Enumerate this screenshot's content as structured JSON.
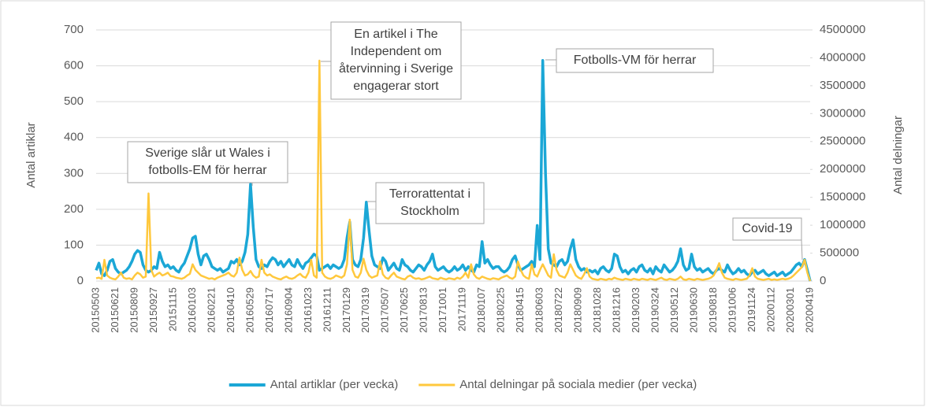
{
  "chart_data": {
    "type": "line",
    "y_label": "Antal artiklar",
    "y2_label": "Antal delningar",
    "categories": [
      "20150503",
      null,
      null,
      null,
      null,
      null,
      null,
      "20150621",
      null,
      null,
      null,
      null,
      null,
      null,
      "20150809",
      null,
      null,
      null,
      null,
      null,
      null,
      "20150927",
      null,
      null,
      null,
      null,
      null,
      null,
      "20151115",
      null,
      null,
      null,
      null,
      null,
      null,
      "20160103",
      null,
      null,
      null,
      null,
      null,
      null,
      "20160221",
      null,
      null,
      null,
      null,
      null,
      null,
      "20160410",
      null,
      null,
      null,
      null,
      null,
      null,
      "20160529",
      null,
      null,
      null,
      null,
      null,
      null,
      "20160717",
      null,
      null,
      null,
      null,
      null,
      null,
      "20160904",
      null,
      null,
      null,
      null,
      null,
      null,
      "20161023",
      null,
      null,
      null,
      null,
      null,
      null,
      "20161211",
      null,
      null,
      null,
      null,
      null,
      null,
      "20170129",
      null,
      null,
      null,
      null,
      null,
      null,
      "20170319",
      null,
      null,
      null,
      null,
      null,
      null,
      "20170507",
      null,
      null,
      null,
      null,
      null,
      null,
      "20170625",
      null,
      null,
      null,
      null,
      null,
      null,
      "20170813",
      null,
      null,
      null,
      null,
      null,
      null,
      "20171001",
      null,
      null,
      null,
      null,
      null,
      null,
      "20171119",
      null,
      null,
      null,
      null,
      null,
      null,
      "20180107",
      null,
      null,
      null,
      null,
      null,
      null,
      "20180225",
      null,
      null,
      null,
      null,
      null,
      null,
      "20180415",
      null,
      null,
      null,
      null,
      null,
      null,
      "20180603",
      null,
      null,
      null,
      null,
      null,
      null,
      "20180722",
      null,
      null,
      null,
      null,
      null,
      null,
      "20180909",
      null,
      null,
      null,
      null,
      null,
      null,
      "20181028",
      null,
      null,
      null,
      null,
      null,
      null,
      "20181216",
      null,
      null,
      null,
      null,
      null,
      null,
      "20190203",
      null,
      null,
      null,
      null,
      null,
      null,
      "20190324",
      null,
      null,
      null,
      null,
      null,
      null,
      "20190512",
      null,
      null,
      null,
      null,
      null,
      null,
      "20190630",
      null,
      null,
      null,
      null,
      null,
      null,
      "20190818",
      null,
      null,
      null,
      null,
      null,
      null,
      "20191006",
      null,
      null,
      null,
      null,
      null,
      null,
      "20191124",
      null,
      null,
      null,
      null,
      null,
      null,
      "20200112",
      null,
      null,
      null,
      null,
      null,
      null,
      "20200301",
      null,
      null,
      null,
      null,
      null,
      null,
      "20200419"
    ],
    "series": [
      {
        "name": "Antal artiklar (per vecka)",
        "color": "#1ba7d6",
        "axis": "y",
        "values": [
          30,
          50,
          20,
          15,
          30,
          55,
          60,
          35,
          25,
          20,
          25,
          30,
          40,
          55,
          75,
          85,
          80,
          45,
          30,
          25,
          30,
          40,
          35,
          80,
          55,
          40,
          45,
          35,
          40,
          30,
          25,
          40,
          50,
          70,
          90,
          120,
          125,
          75,
          45,
          70,
          75,
          60,
          40,
          35,
          30,
          35,
          25,
          30,
          35,
          55,
          50,
          60,
          45,
          55,
          80,
          130,
          270,
          150,
          60,
          40,
          35,
          45,
          40,
          55,
          65,
          60,
          45,
          55,
          40,
          50,
          60,
          45,
          40,
          60,
          45,
          35,
          50,
          55,
          65,
          75,
          70,
          30,
          35,
          40,
          45,
          35,
          45,
          40,
          35,
          40,
          60,
          120,
          165,
          60,
          45,
          40,
          60,
          120,
          220,
          140,
          70,
          45,
          40,
          35,
          65,
          55,
          30,
          40,
          50,
          35,
          30,
          60,
          45,
          40,
          30,
          25,
          35,
          45,
          40,
          30,
          45,
          55,
          75,
          40,
          30,
          35,
          40,
          30,
          25,
          30,
          40,
          30,
          35,
          45,
          30,
          40,
          30,
          25,
          45,
          40,
          110,
          50,
          60,
          45,
          35,
          40,
          40,
          30,
          25,
          30,
          40,
          60,
          70,
          45,
          30,
          35,
          40,
          45,
          55,
          40,
          155,
          60,
          615,
          300,
          90,
          50,
          45,
          40,
          55,
          60,
          45,
          55,
          90,
          115,
          60,
          40,
          30,
          35,
          25,
          30,
          25,
          30,
          20,
          35,
          40,
          30,
          25,
          35,
          75,
          70,
          40,
          25,
          30,
          20,
          30,
          35,
          25,
          40,
          45,
          30,
          25,
          35,
          20,
          40,
          30,
          25,
          45,
          35,
          25,
          30,
          40,
          55,
          90,
          45,
          30,
          35,
          75,
          40,
          30,
          35,
          25,
          30,
          35,
          25,
          20,
          30,
          35,
          30,
          25,
          45,
          30,
          20,
          25,
          35,
          25,
          30,
          20,
          15,
          25,
          30,
          20,
          25,
          30,
          20,
          15,
          20,
          25,
          15,
          20,
          25,
          15,
          20,
          25,
          35,
          45,
          50,
          40,
          60,
          30,
          0
        ]
      },
      {
        "name": "Antal delningar på sociala medier (per vecka)",
        "color": "#ffc83d",
        "axis": "y2",
        "values": [
          50000,
          60000,
          40000,
          380000,
          100000,
          60000,
          40000,
          30000,
          80000,
          150000,
          60000,
          40000,
          50000,
          30000,
          100000,
          150000,
          120000,
          60000,
          80000,
          1570000,
          200000,
          80000,
          120000,
          150000,
          100000,
          120000,
          150000,
          90000,
          80000,
          60000,
          50000,
          40000,
          60000,
          100000,
          130000,
          300000,
          200000,
          150000,
          100000,
          80000,
          60000,
          40000,
          50000,
          30000,
          60000,
          80000,
          100000,
          120000,
          150000,
          100000,
          80000,
          150000,
          420000,
          200000,
          100000,
          120000,
          180000,
          100000,
          60000,
          80000,
          380000,
          150000,
          100000,
          120000,
          80000,
          60000,
          40000,
          30000,
          60000,
          80000,
          50000,
          40000,
          60000,
          100000,
          130000,
          80000,
          60000,
          150000,
          380000,
          100000,
          60000,
          3950000,
          150000,
          80000,
          50000,
          40000,
          60000,
          100000,
          80000,
          60000,
          100000,
          300000,
          1100000,
          200000,
          80000,
          60000,
          150000,
          400000,
          200000,
          100000,
          60000,
          80000,
          100000,
          350000,
          120000,
          60000,
          40000,
          100000,
          150000,
          80000,
          60000,
          40000,
          30000,
          80000,
          100000,
          60000,
          40000,
          50000,
          30000,
          40000,
          60000,
          80000,
          50000,
          40000,
          30000,
          60000,
          40000,
          30000,
          50000,
          40000,
          30000,
          60000,
          40000,
          80000,
          150000,
          60000,
          300000,
          120000,
          60000,
          40000,
          80000,
          60000,
          40000,
          30000,
          50000,
          40000,
          30000,
          60000,
          80000,
          100000,
          60000,
          40000,
          80000,
          350000,
          200000,
          100000,
          60000,
          40000,
          300000,
          120000,
          80000,
          200000,
          300000,
          200000,
          100000,
          60000,
          480000,
          200000,
          100000,
          80000,
          60000,
          150000,
          300000,
          200000,
          100000,
          60000,
          40000,
          120000,
          230000,
          80000,
          40000,
          30000,
          20000,
          40000,
          30000,
          20000,
          40000,
          30000,
          60000,
          40000,
          30000,
          20000,
          40000,
          30000,
          20000,
          40000,
          30000,
          20000,
          40000,
          30000,
          20000,
          40000,
          30000,
          20000,
          40000,
          60000,
          30000,
          20000,
          40000,
          30000,
          20000,
          40000,
          80000,
          30000,
          20000,
          40000,
          30000,
          20000,
          40000,
          30000,
          20000,
          30000,
          40000,
          60000,
          100000,
          200000,
          320000,
          150000,
          60000,
          40000,
          30000,
          20000,
          40000,
          30000,
          20000,
          30000,
          40000,
          100000,
          230000,
          80000,
          40000,
          30000,
          20000,
          30000,
          40000,
          20000,
          30000,
          20000,
          30000,
          40000,
          30000,
          40000,
          60000,
          100000,
          150000,
          200000,
          250000,
          380000,
          150000,
          0
        ]
      }
    ],
    "ylim": [
      0,
      700
    ],
    "yticks": [
      0,
      100,
      200,
      300,
      400,
      500,
      600,
      700
    ],
    "y2lim": [
      0,
      4500000
    ],
    "y2ticks": [
      0,
      500000,
      1000000,
      1500000,
      2000000,
      2500000,
      3000000,
      3500000,
      4000000,
      4500000
    ],
    "grid": true,
    "legend": "bottom",
    "annotations": [
      {
        "lines": [
          "Sverige slår ut Wales i",
          "fotbolls-EM för herrar"
        ]
      },
      {
        "lines": [
          "En artikel i The",
          "Independent om",
          "återvinning i Sverige",
          "engagerar stort"
        ]
      },
      {
        "lines": [
          "Terrorattentat i",
          "Stockholm"
        ]
      },
      {
        "lines": [
          "Fotbolls-VM för herrar"
        ]
      },
      {
        "lines": [
          "Covid-19"
        ]
      }
    ]
  }
}
